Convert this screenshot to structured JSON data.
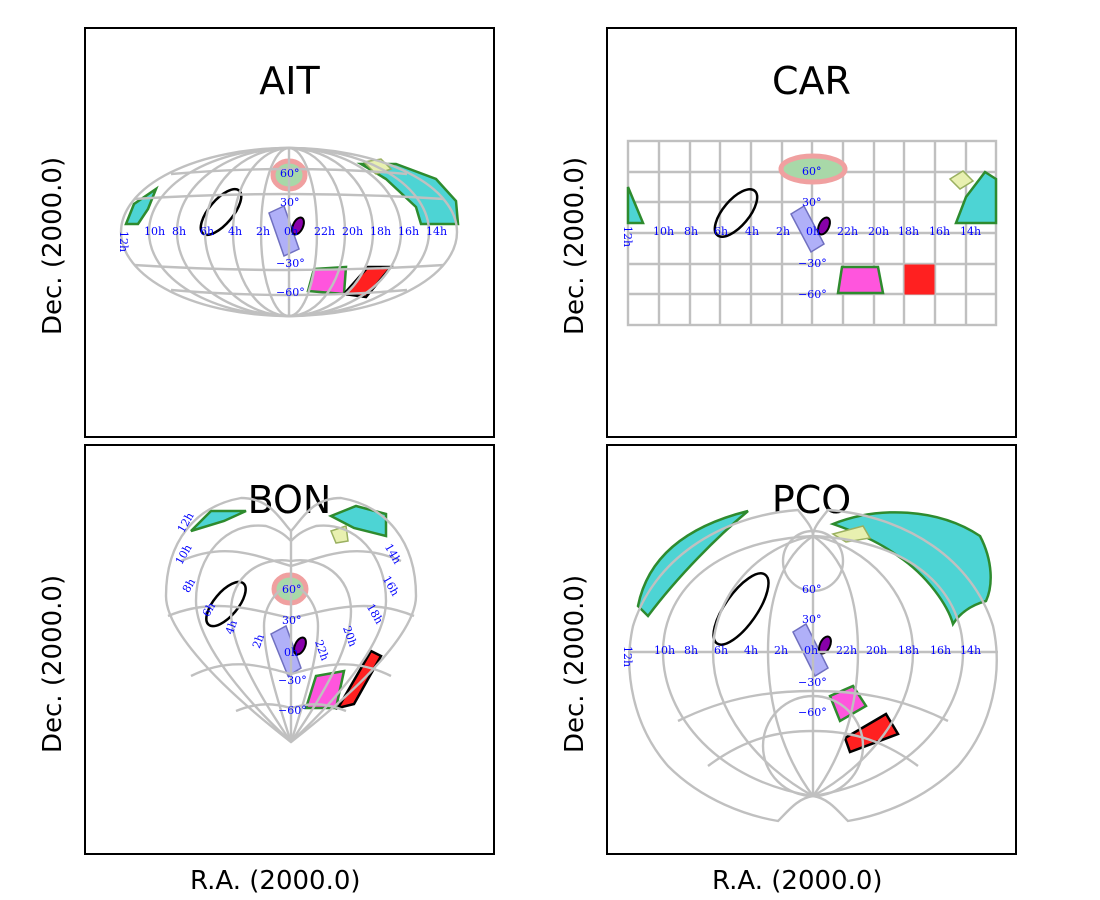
{
  "panels": [
    {
      "id": "ait",
      "title": "AIT"
    },
    {
      "id": "car",
      "title": "CAR"
    },
    {
      "id": "bon",
      "title": "BON"
    },
    {
      "id": "pco",
      "title": "PCO"
    }
  ],
  "axis_labels": {
    "y": "Dec. (2000.0)",
    "x": "R.A. (2000.0)"
  },
  "ra_ticks": [
    "12h",
    "10h",
    "8h",
    "6h",
    "4h",
    "2h",
    "0h",
    "22h",
    "20h",
    "18h",
    "16h",
    "14h"
  ],
  "ra_ticks_pco": [
    "12h",
    "10h",
    "8h",
    "6h",
    "4h",
    "2h",
    "0h",
    "22h",
    "20h",
    "18h",
    "16h",
    "14h"
  ],
  "dec_ticks": [
    "60°",
    "30°",
    "−30°",
    "−60°"
  ],
  "colors": {
    "grid": "#c0c0c0",
    "ticks": "#0000ff",
    "cyan_region": "#4dd4d4",
    "green_edge": "#2e8b2e",
    "yellow_region": "#e8f0b0",
    "pink_ellipse": "#f0a0a0",
    "blue_box": "#b0b0f8",
    "magenta_box": "#ff55dd",
    "red_box": "#ff2020",
    "purple_ellipse": "#8800aa"
  }
}
